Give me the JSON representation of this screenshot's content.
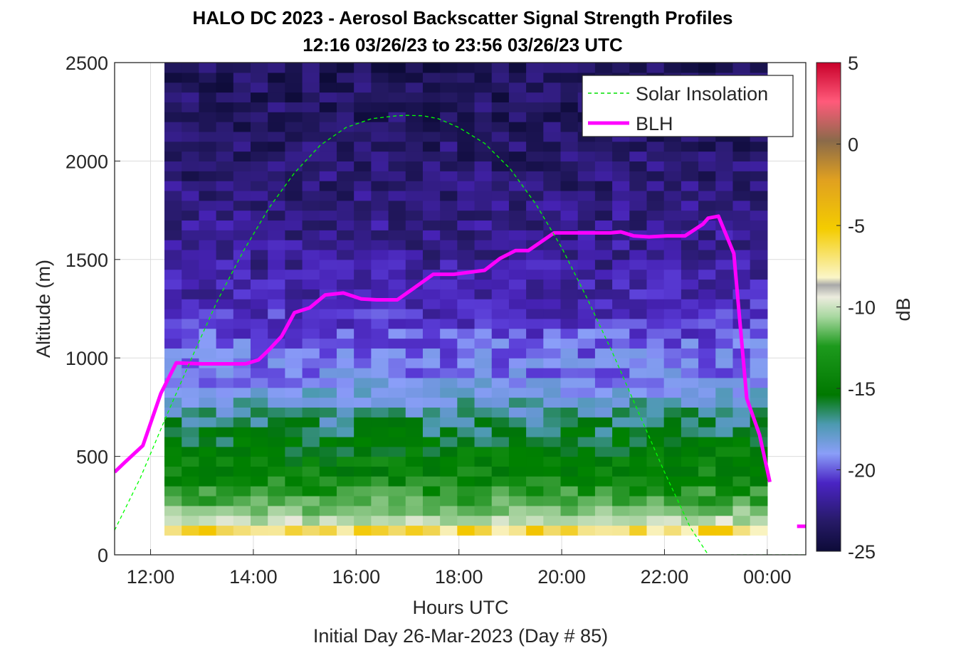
{
  "chart_data": {
    "type": "heatmap",
    "title": "HALO DC 2023 - Aerosol Backscatter Signal Strength Profiles",
    "subtitle": "12:16 03/26/23 to 23:56 03/26/23  UTC",
    "xlabel": "Hours UTC",
    "xlabel2": "Initial Day 26-Mar-2023 (Day # 85)",
    "ylabel": "Altitude (m)",
    "colorbar_label": "dB",
    "x_unit": "hours UTC (values past 24 wrap to next day)",
    "xlim": [
      11.3,
      24.75
    ],
    "ylim": [
      0,
      2500
    ],
    "x_ticks": [
      12,
      14,
      16,
      18,
      20,
      22,
      24
    ],
    "x_tick_labels": [
      "12:00",
      "14:00",
      "16:00",
      "18:00",
      "20:00",
      "22:00",
      "00:00"
    ],
    "y_ticks": [
      0,
      500,
      1000,
      1500,
      2000,
      2500
    ],
    "y_tick_labels": [
      "0",
      "500",
      "1000",
      "1500",
      "2000",
      "2500"
    ],
    "colorbar_range": [
      -25,
      5
    ],
    "colorbar_ticks": [
      5,
      0,
      -5,
      -10,
      -15,
      -20,
      -25
    ],
    "colorbar_tick_labels": [
      "5",
      "0",
      "-5",
      "-10",
      "-15",
      "-20",
      "-25"
    ],
    "grid": true,
    "legend_position": "top-right",
    "legend": [
      "Solar Insolation",
      "BLH"
    ],
    "heatmap": {
      "x_start": 12.27,
      "x_end": 24.0,
      "column_count": 35,
      "y_bottom": 100,
      "y_top": 2500,
      "row_height_m": 50,
      "value_profile_db": [
        {
          "altitude": 125,
          "value": -8
        },
        {
          "altitude": 175,
          "value": -12
        },
        {
          "altitude": 250,
          "value": -14
        },
        {
          "altitude": 400,
          "value": -16
        },
        {
          "altitude": 600,
          "value": -17
        },
        {
          "altitude": 750,
          "value": -18.5
        },
        {
          "altitude": 900,
          "value": -20
        },
        {
          "altitude": 1050,
          "value": -20.5
        },
        {
          "altitude": 1200,
          "value": -21.5
        },
        {
          "altitude": 1500,
          "value": -22.5
        },
        {
          "altitude": 2000,
          "value": -23.5
        },
        {
          "altitude": 2500,
          "value": -24
        }
      ]
    },
    "series": [
      {
        "name": "BLH",
        "color": "#ff00ff",
        "x": [
          11.3,
          11.5,
          11.85,
          12.2,
          12.5,
          13.0,
          13.5,
          13.85,
          14.1,
          14.3,
          14.55,
          14.8,
          15.1,
          15.4,
          15.75,
          16.1,
          16.4,
          16.8,
          17.1,
          17.5,
          17.9,
          18.2,
          18.5,
          18.8,
          19.1,
          19.35,
          19.6,
          19.85,
          20.2,
          20.6,
          20.95,
          21.15,
          21.4,
          21.7,
          22.05,
          22.4,
          22.75,
          22.85,
          23.05,
          23.35,
          23.6,
          23.85,
          24.05
        ],
        "y": [
          420,
          470,
          555,
          820,
          975,
          970,
          970,
          970,
          990,
          1040,
          1110,
          1230,
          1255,
          1320,
          1330,
          1300,
          1295,
          1295,
          1350,
          1425,
          1425,
          1435,
          1445,
          1505,
          1545,
          1545,
          1590,
          1635,
          1635,
          1635,
          1635,
          1640,
          1620,
          1615,
          1620,
          1620,
          1680,
          1710,
          1720,
          1530,
          795,
          610,
          370
        ]
      },
      {
        "name": "BLH",
        "color": "#ff00ff",
        "x": [
          24.58,
          24.75
        ],
        "y": [
          145,
          145
        ]
      },
      {
        "name": "Solar Insolation",
        "color": "#00ff00",
        "x": [
          11.3,
          11.8,
          12.3,
          12.8,
          13.3,
          13.8,
          14.3,
          14.8,
          15.3,
          15.8,
          16.3,
          16.8,
          17.0,
          17.3,
          17.6,
          18.0,
          18.5,
          19.0,
          19.5,
          20.0,
          20.5,
          21.0,
          21.5,
          22.0,
          22.5,
          23.0,
          23.3,
          23.5,
          24.0,
          24.75
        ],
        "y": [
          125,
          390,
          700,
          1000,
          1290,
          1540,
          1760,
          1940,
          2080,
          2170,
          2215,
          2230,
          2232,
          2230,
          2215,
          2170,
          2090,
          1960,
          1780,
          1560,
          1300,
          1020,
          720,
          420,
          140,
          -60,
          0,
          0,
          0,
          0
        ]
      }
    ]
  }
}
